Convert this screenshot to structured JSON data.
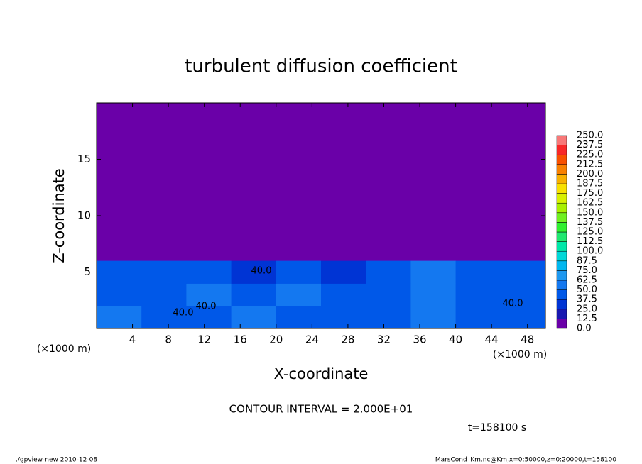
{
  "chart_data": {
    "type": "heatmap",
    "title": "turbulent diffusion coefficient",
    "xlabel": "X-coordinate",
    "ylabel": "Z-coordinate",
    "x_unit_left": "(×1000 m)",
    "x_unit_right": "(×1000 m)",
    "xlim": [
      0,
      50
    ],
    "ylim": [
      0,
      20
    ],
    "xticks": [
      4,
      8,
      12,
      16,
      20,
      24,
      28,
      32,
      36,
      40,
      44,
      48
    ],
    "yticks": [
      5,
      10,
      15
    ],
    "x_edges": [
      0,
      5,
      10,
      15,
      20,
      25,
      30,
      35,
      40,
      45,
      50
    ],
    "z_edges": [
      0,
      2,
      4,
      6
    ],
    "values": [
      [
        50,
        45,
        45,
        55,
        45,
        40,
        45,
        50,
        45,
        45
      ],
      [
        45,
        40,
        50,
        45,
        55,
        40,
        45,
        60,
        40,
        45
      ],
      [
        40,
        45,
        40,
        35,
        40,
        30,
        40,
        55,
        40,
        40
      ]
    ],
    "background_value": 0,
    "contour_labels": [
      "40.0",
      "40.0",
      "40.0",
      "40.0"
    ],
    "levels": [
      {
        "value": 0,
        "label": "0.0"
      },
      {
        "value": 12.5,
        "label": "12.5"
      },
      {
        "value": 25,
        "label": "25.0"
      },
      {
        "value": 37.5,
        "label": "37.5"
      },
      {
        "value": 50,
        "label": "50.0"
      },
      {
        "value": 62.5,
        "label": "62.5"
      },
      {
        "value": 75,
        "label": "75.0"
      },
      {
        "value": 87.5,
        "label": "87.5"
      },
      {
        "value": 100,
        "label": "100.0"
      },
      {
        "value": 112.5,
        "label": "112.5"
      },
      {
        "value": 125,
        "label": "125.0"
      },
      {
        "value": 137.5,
        "label": "137.5"
      },
      {
        "value": 150,
        "label": "150.0"
      },
      {
        "value": 162.5,
        "label": "162.5"
      },
      {
        "value": 175,
        "label": "175.0"
      },
      {
        "value": 187.5,
        "label": "187.5"
      },
      {
        "value": 200,
        "label": "200.0"
      },
      {
        "value": 212.5,
        "label": "212.5"
      },
      {
        "value": 225,
        "label": "225.0"
      },
      {
        "value": 237.5,
        "label": "237.5"
      },
      {
        "value": 250,
        "label": "250.0"
      }
    ],
    "level_colors": [
      "#6a00a8",
      "#1818b0",
      "#0034d4",
      "#0058e8",
      "#1478f0",
      "#1e98f0",
      "#00b8f0",
      "#00d8d8",
      "#00e8a8",
      "#20e870",
      "#30f030",
      "#70f020",
      "#a8f000",
      "#d8f000",
      "#f8e000",
      "#f8b000",
      "#f88000",
      "#f85000",
      "#f82828",
      "#f87878"
    ],
    "contour_interval": "CONTOUR INTERVAL = 2.000E+01",
    "time": "t=158100 s",
    "footer_left": "./gpview-new  2010-12-08",
    "footer_right": "MarsCond_Km.nc@Km,x=0:50000,z=0:20000,t=158100"
  }
}
